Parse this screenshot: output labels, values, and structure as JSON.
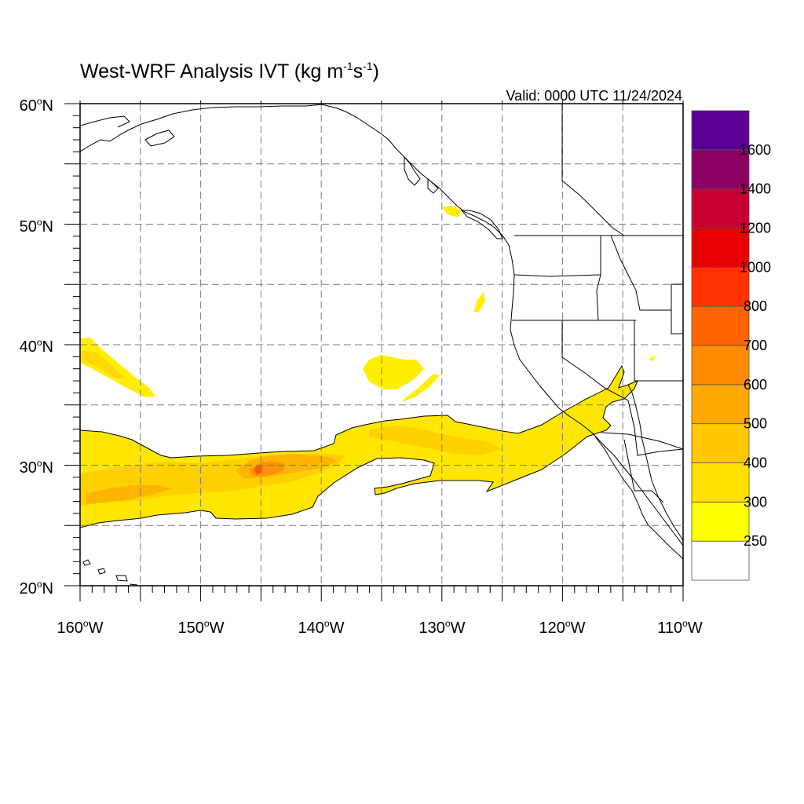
{
  "title": {
    "main": "West-WRF Analysis IVT (kg m",
    "exp1": "-1",
    "mid": "s",
    "exp2": "-1",
    "close": ")"
  },
  "valid": "Valid: 0000 UTC 11/24/2024",
  "lat_labels": [
    {
      "num": "60",
      "hem": "N",
      "lat": 60
    },
    {
      "num": "50",
      "hem": "N",
      "lat": 50
    },
    {
      "num": "40",
      "hem": "N",
      "lat": 40
    },
    {
      "num": "30",
      "hem": "N",
      "lat": 30
    },
    {
      "num": "20",
      "hem": "N",
      "lat": 20
    }
  ],
  "lon_labels": [
    {
      "num": "160",
      "hem": "W",
      "lon": -160
    },
    {
      "num": "150",
      "hem": "W",
      "lon": -150
    },
    {
      "num": "140",
      "hem": "W",
      "lon": -140
    },
    {
      "num": "130",
      "hem": "W",
      "lon": -130
    },
    {
      "num": "120",
      "hem": "W",
      "lon": -120
    },
    {
      "num": "110",
      "hem": "W",
      "lon": -110
    }
  ],
  "extent": {
    "lon_min": -160,
    "lon_max": -110,
    "lat_min": 20,
    "lat_max": 60
  },
  "grid": {
    "lon_step": 5,
    "lat_step": 5,
    "style": "dashed"
  },
  "colorbar": {
    "levels": [
      "250",
      "300",
      "400",
      "500",
      "600",
      "700",
      "800",
      "1000",
      "1200",
      "1400",
      "1600"
    ],
    "colors": [
      "#ffffff",
      "#ffff00",
      "#ffe100",
      "#ffc800",
      "#ffaa00",
      "#ff8c00",
      "#ff6400",
      "#ff3200",
      "#e60000",
      "#c80032",
      "#8c0064",
      "#5a0096"
    ]
  },
  "chart_data": {
    "type": "heatmap",
    "title": "West-WRF Analysis IVT (kg m-1s-1)",
    "variable": "IVT",
    "units": "kg m-1 s-1",
    "valid_time": "0000 UTC 11/24/2024",
    "lon_range": [
      -160,
      -110
    ],
    "lat_range": [
      20,
      60
    ],
    "contour_levels": [
      250,
      300,
      400,
      500,
      600,
      700,
      800,
      1000,
      1200,
      1400,
      1600
    ],
    "features": [
      {
        "name": "atmospheric river",
        "lon_range": [
          -160,
          -114
        ],
        "lat_range": [
          26,
          37
        ],
        "max_ivt_approx": 800,
        "max_location": [
          -145.2,
          29.6
        ]
      },
      {
        "name": "streak",
        "lon_range": [
          -160,
          -154
        ],
        "lat_range": [
          36,
          41
        ],
        "ivt_approx": 300
      },
      {
        "name": "blob",
        "lon_range": [
          -136.5,
          -131.5
        ],
        "lat_range": [
          35.5,
          39
        ],
        "ivt_approx": 300
      },
      {
        "name": "patch",
        "lon_range": [
          -127.3,
          -126.3
        ],
        "lat_range": [
          42.5,
          44.5
        ],
        "ivt_approx": 260
      },
      {
        "name": "patch",
        "lon_range": [
          -129.8,
          -127.8
        ],
        "lat_range": [
          50.5,
          51.5
        ],
        "ivt_approx": 260
      }
    ]
  }
}
